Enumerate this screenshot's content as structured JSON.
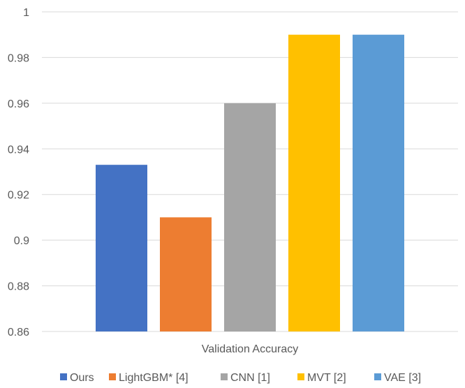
{
  "chart_data": {
    "type": "bar",
    "xlabel": "Validation Accuracy",
    "ylim": [
      0.86,
      1.0
    ],
    "yticks": [
      0.86,
      0.88,
      0.9,
      0.92,
      0.94,
      0.96,
      0.98,
      1
    ],
    "ytick_labels": [
      "0.86",
      "0.88",
      "0.9",
      "0.92",
      "0.94",
      "0.96",
      "0.98",
      "1"
    ],
    "grid": true,
    "legend_position": "bottom",
    "series": [
      {
        "name": "Ours",
        "value": 0.933,
        "color": "#4472C4"
      },
      {
        "name": "LightGBM* [4]",
        "value": 0.91,
        "color": "#ED7D31"
      },
      {
        "name": "CNN [1]",
        "value": 0.96,
        "color": "#A5A5A5"
      },
      {
        "name": "MVT [2]",
        "value": 0.99,
        "color": "#FFC000"
      },
      {
        "name": "VAE [3]",
        "value": 0.99,
        "color": "#5B9BD5"
      }
    ]
  }
}
